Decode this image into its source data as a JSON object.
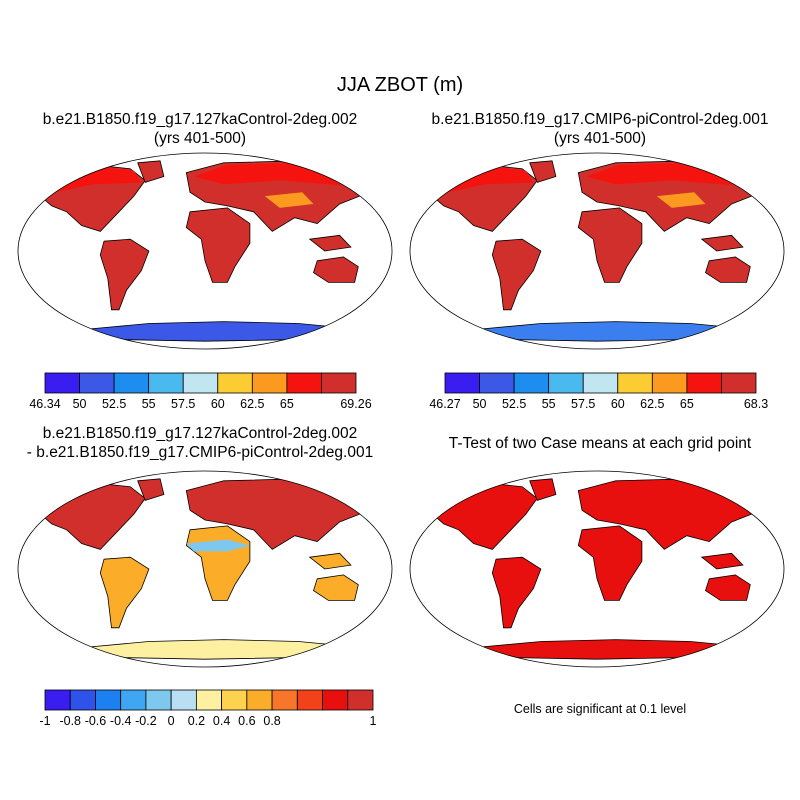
{
  "title": "JJA ZBOT (m)",
  "panels": [
    {
      "id": "case1",
      "title_lines": [
        "b.e21.B1850.f19_g17.127kaControl-2deg.002",
        "(yrs 401-500)"
      ],
      "colorbar": {
        "colors": [
          "#3a1df0",
          "#3b58e6",
          "#1d8ef0",
          "#49b9ef",
          "#c2e5f2",
          "#fccc33",
          "#fb9a1f",
          "#f5130f",
          "#d02f2b"
        ],
        "labels": [
          "46.34",
          "50",
          "52.5",
          "55",
          "57.5",
          "60",
          "62.5",
          "65",
          "69.26"
        ]
      },
      "fill": {
        "ocean": "#ffffff",
        "land_main": "#d02f2b",
        "high_lat": "#f5130f",
        "tibet": "#fb9a1f",
        "antarctica": "#3b58e6"
      }
    },
    {
      "id": "case2",
      "title_lines": [
        "b.e21.B1850.f19_g17.CMIP6-piControl-2deg.001",
        "(yrs 401-500)"
      ],
      "colorbar": {
        "colors": [
          "#3a1df0",
          "#3b58e6",
          "#1d8ef0",
          "#49b9ef",
          "#c2e5f2",
          "#fccc33",
          "#fb9a1f",
          "#f5130f",
          "#d02f2b"
        ],
        "labels": [
          "46.27",
          "50",
          "52.5",
          "55",
          "57.5",
          "60",
          "62.5",
          "65",
          "68.3"
        ]
      },
      "fill": {
        "ocean": "#ffffff",
        "land_main": "#d02f2b",
        "high_lat": "#f5130f",
        "tibet": "#fb9a1f",
        "antarctica": "#3b7ef0"
      }
    },
    {
      "id": "difference",
      "title_lines": [
        "b.e21.B1850.f19_g17.127kaControl-2deg.002",
        "- b.e21.B1850.f19_g17.CMIP6-piControl-2deg.001"
      ],
      "colorbar": {
        "colors": [
          "#3a1df0",
          "#2f52e8",
          "#1d80f0",
          "#3ea6f2",
          "#7ec8f0",
          "#b9e0f2",
          "#fdf0a0",
          "#fcd24e",
          "#fbad2a",
          "#f8762a",
          "#f2421a",
          "#e8100e",
          "#d02f2b"
        ],
        "labels": [
          "-1",
          "-0.8",
          "-0.6",
          "-0.4",
          "-0.2",
          "0",
          "0.2",
          "0.4",
          "0.6",
          "0.8",
          "1"
        ]
      },
      "fill": {
        "ocean": "#ffffff",
        "land_main": "#fbad2a",
        "north": "#d02f2b",
        "sahel": "#7ec8f0",
        "antarctica": "#fdf0a0"
      }
    },
    {
      "id": "ttest",
      "title_lines": [
        "T-Test of two Case means at each grid point"
      ],
      "note": "Cells are significant at 0.1 level",
      "fill": {
        "ocean": "#ffffff",
        "land_main": "#e8100e"
      }
    }
  ]
}
